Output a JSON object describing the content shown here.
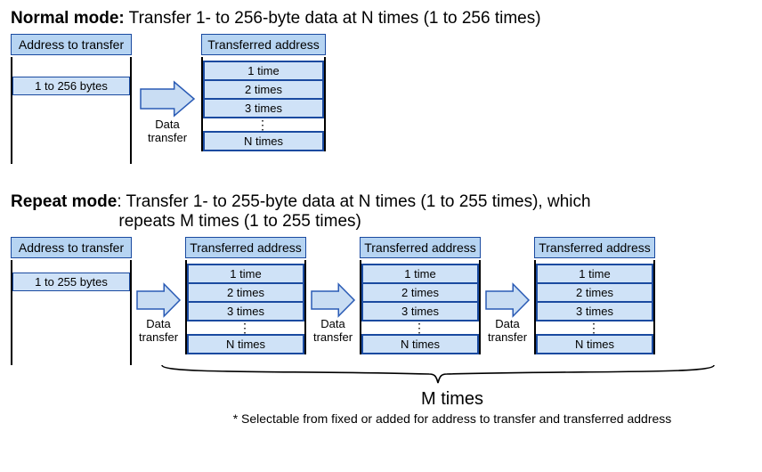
{
  "colors": {
    "header_fill": "#b6d4f2",
    "cell_fill": "#cfe2f7",
    "arrow_fill": "#c9ddf3",
    "stroke_blue": "#1a4aa0",
    "arrow_stroke": "#2a5bb5",
    "text": "#000000",
    "background": "#ffffff"
  },
  "normal": {
    "title_bold": "Normal mode:",
    "title_rest": " Transfer 1- to 256-byte data at N times (1 to 256 times)",
    "src_header": "Address to transfer",
    "src_bytes": "1 to 256 bytes",
    "arrow_label": "Data\ntransfer",
    "dest_header": "Transferred address",
    "cells": [
      "1 time",
      "2 times",
      "3 times"
    ],
    "last_cell": "N times",
    "layout": {
      "src_w": 136,
      "dest_w": 140,
      "arrow_w": 64,
      "arrow_h": 44,
      "gap1": 8,
      "gap2": 6
    }
  },
  "repeat": {
    "title_bold": "Repeat mode",
    "title_rest": ": Transfer 1- to 255-byte data at N times (1 to 255 times), which\n                       repeats  M times (1 to 255 times)",
    "src_header": "Address to transfer",
    "src_bytes": "1 to 255 bytes",
    "arrow_label": "Data\ntransfer",
    "dest_header": "Transferred address",
    "cells": [
      "1 time",
      "2 times",
      "3 times"
    ],
    "last_cell": "N times",
    "m_label": "M times",
    "footnote": "* Selectable from fixed or added for address to transfer and transferred address",
    "layout": {
      "src_w": 136,
      "dest_w": 136,
      "arrow_w": 52,
      "arrow_h": 40
    }
  }
}
